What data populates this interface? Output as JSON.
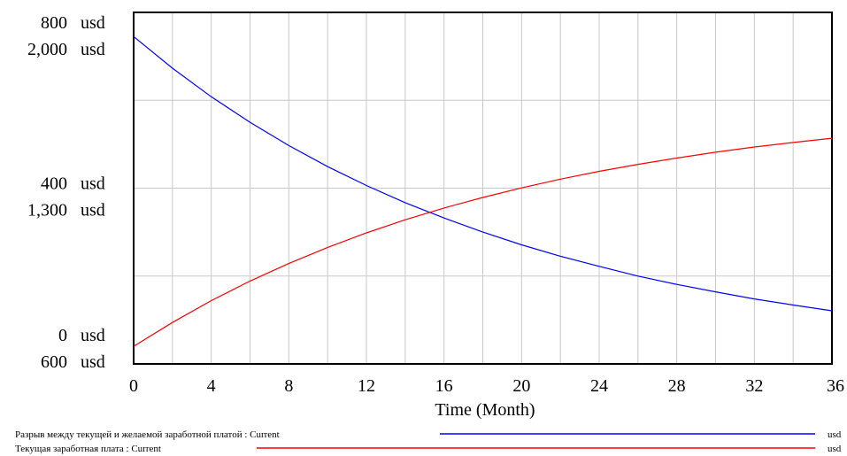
{
  "chart_data": {
    "type": "line",
    "x": [
      0,
      2,
      4,
      6,
      8,
      10,
      12,
      14,
      16,
      18,
      20,
      22,
      24,
      26,
      28,
      30,
      32,
      34,
      36
    ],
    "xticks": [
      0,
      4,
      8,
      12,
      16,
      20,
      24,
      28,
      32,
      36
    ],
    "xlim": [
      0,
      36
    ],
    "xlabel": "Time (Month)",
    "grid": true,
    "axes": [
      {
        "name": "left-top",
        "ylim": [
          0,
          800
        ],
        "unit": "usd",
        "tick_labels": [
          {
            "value": 800,
            "label": "800",
            "unit": "usd"
          },
          {
            "value": 400,
            "label": "400",
            "unit": "usd"
          },
          {
            "value": 0,
            "label": "0",
            "unit": "usd"
          }
        ]
      },
      {
        "name": "left-bottom",
        "ylim": [
          600,
          2000
        ],
        "unit": "usd",
        "tick_labels": [
          {
            "value": 2000,
            "label": "2,000",
            "unit": "usd"
          },
          {
            "value": 1300,
            "label": "1,300",
            "unit": "usd"
          },
          {
            "value": 600,
            "label": "600",
            "unit": "usd"
          }
        ]
      }
    ],
    "series": [
      {
        "name": "Разрыв между текущей и желаемой заработной платой : Current",
        "unit": "usd",
        "axis": 0,
        "color": "#0000ff",
        "values": [
          745,
          673,
          608,
          550,
          497,
          449,
          406,
          367,
          332,
          300,
          271,
          245,
          222,
          200,
          181,
          164,
          148,
          134,
          121
        ]
      },
      {
        "name": "Текущая заработная плата : Current",
        "unit": "usd",
        "axis": 1,
        "color": "#ff0000",
        "values": [
          670,
          765,
          852,
          930,
          1000,
          1064,
          1122,
          1174,
          1221,
          1263,
          1301,
          1336,
          1367,
          1395,
          1420,
          1443,
          1464,
          1482,
          1499
        ]
      }
    ]
  }
}
